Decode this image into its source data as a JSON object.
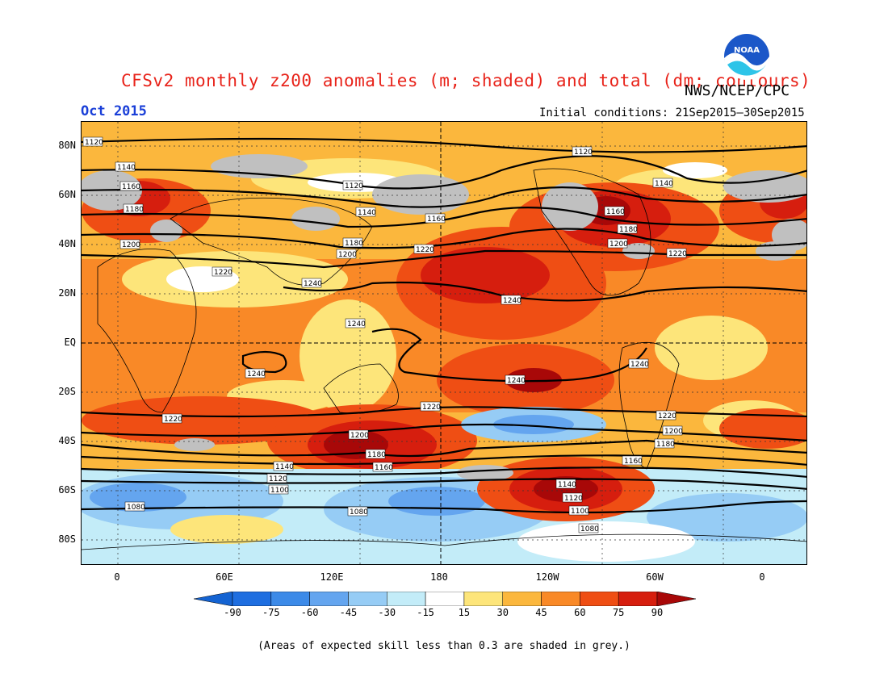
{
  "title": "CFSv2 monthly z200 anomalies (m; shaded) and total (dm; contours)",
  "agency": "NWS/NCEP/CPC",
  "logo_text": "NOAA",
  "month": "Oct 2015",
  "initial_conditions": "Initial conditions: 21Sep2015—30Sep2015",
  "lat_labels": [
    "80N",
    "60N",
    "40N",
    "20N",
    "EQ",
    "20S",
    "40S",
    "60S",
    "80S"
  ],
  "lon_labels": [
    "0",
    "60E",
    "120E",
    "180",
    "120W",
    "60W",
    "0"
  ],
  "colorbar": {
    "levels": [
      "-90",
      "-75",
      "-60",
      "-45",
      "-30",
      "-15",
      "15",
      "30",
      "45",
      "60",
      "75",
      "90"
    ],
    "colors": [
      "#1463d2",
      "#1e6ee0",
      "#3c8ae8",
      "#64a5ef",
      "#96ccf5",
      "#c3ecf8",
      "#ffffff",
      "#fde57a",
      "#fbb73d",
      "#f98927",
      "#ef4e14",
      "#d61e0e",
      "#a80808"
    ]
  },
  "note": "(Areas of expected skill less than 0.3 are shaded in grey.)",
  "contour_labels": [
    "1080",
    "1100",
    "1120",
    "1140",
    "1160",
    "1180",
    "1200",
    "1220",
    "1240"
  ]
}
